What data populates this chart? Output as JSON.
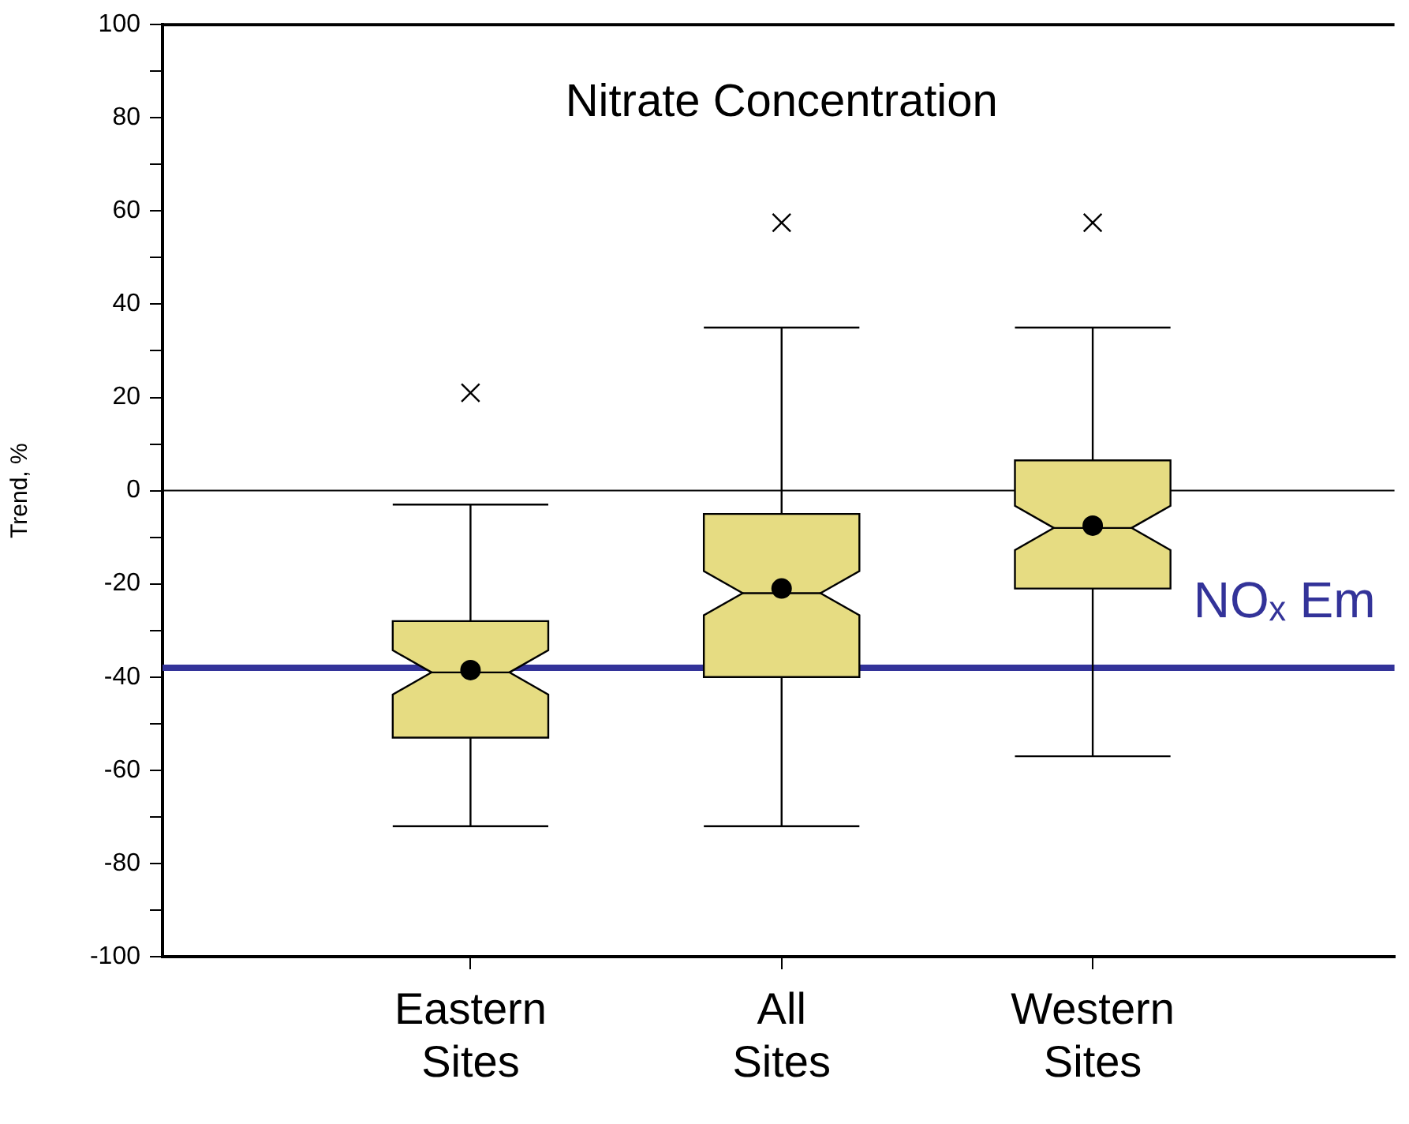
{
  "chart_data": {
    "type": "box",
    "title": "Nitrate Concentration",
    "ylabel": "Trend, %",
    "categories": [
      "Eastern Sites",
      "All Sites",
      "Western Sites"
    ],
    "color": "#e6dc82",
    "boxes": [
      {
        "low": -72,
        "q1": -53,
        "median": -39,
        "q3": -28,
        "high": -3,
        "mean": -38.5,
        "outliers": [
          21
        ]
      },
      {
        "low": -72,
        "q1": -40,
        "median": -22,
        "q3": -5,
        "high": 35,
        "mean": -21,
        "outliers": [
          57.5
        ]
      },
      {
        "low": -57,
        "q1": -21,
        "median": -8,
        "q3": 6.5,
        "high": 35,
        "mean": -7.5,
        "outliers": [
          57.5
        ]
      }
    ],
    "ylim": [
      -100,
      100
    ],
    "yticks": [
      -100,
      {
        "value": -90,
        "label": null
      },
      -80,
      {
        "value": -70,
        "label": null
      },
      -60,
      {
        "value": -50,
        "label": null
      },
      -40,
      {
        "value": -30,
        "label": null
      },
      -20,
      {
        "value": -10,
        "label": null
      },
      0,
      {
        "value": 10,
        "label": null
      },
      20,
      {
        "value": 30,
        "label": null
      },
      40,
      {
        "value": 50,
        "label": null
      },
      60,
      {
        "value": 70,
        "label": null
      },
      80,
      {
        "value": 90,
        "label": null
      },
      100
    ],
    "ref_lines": [
      {
        "axis": "y",
        "value": 0,
        "label": null,
        "color": "#000000"
      },
      {
        "axis": "y",
        "value": -38,
        "label": "NOₓ Em",
        "color": "#333399"
      }
    ],
    "marker": "circle",
    "grid": false,
    "legend": false
  }
}
